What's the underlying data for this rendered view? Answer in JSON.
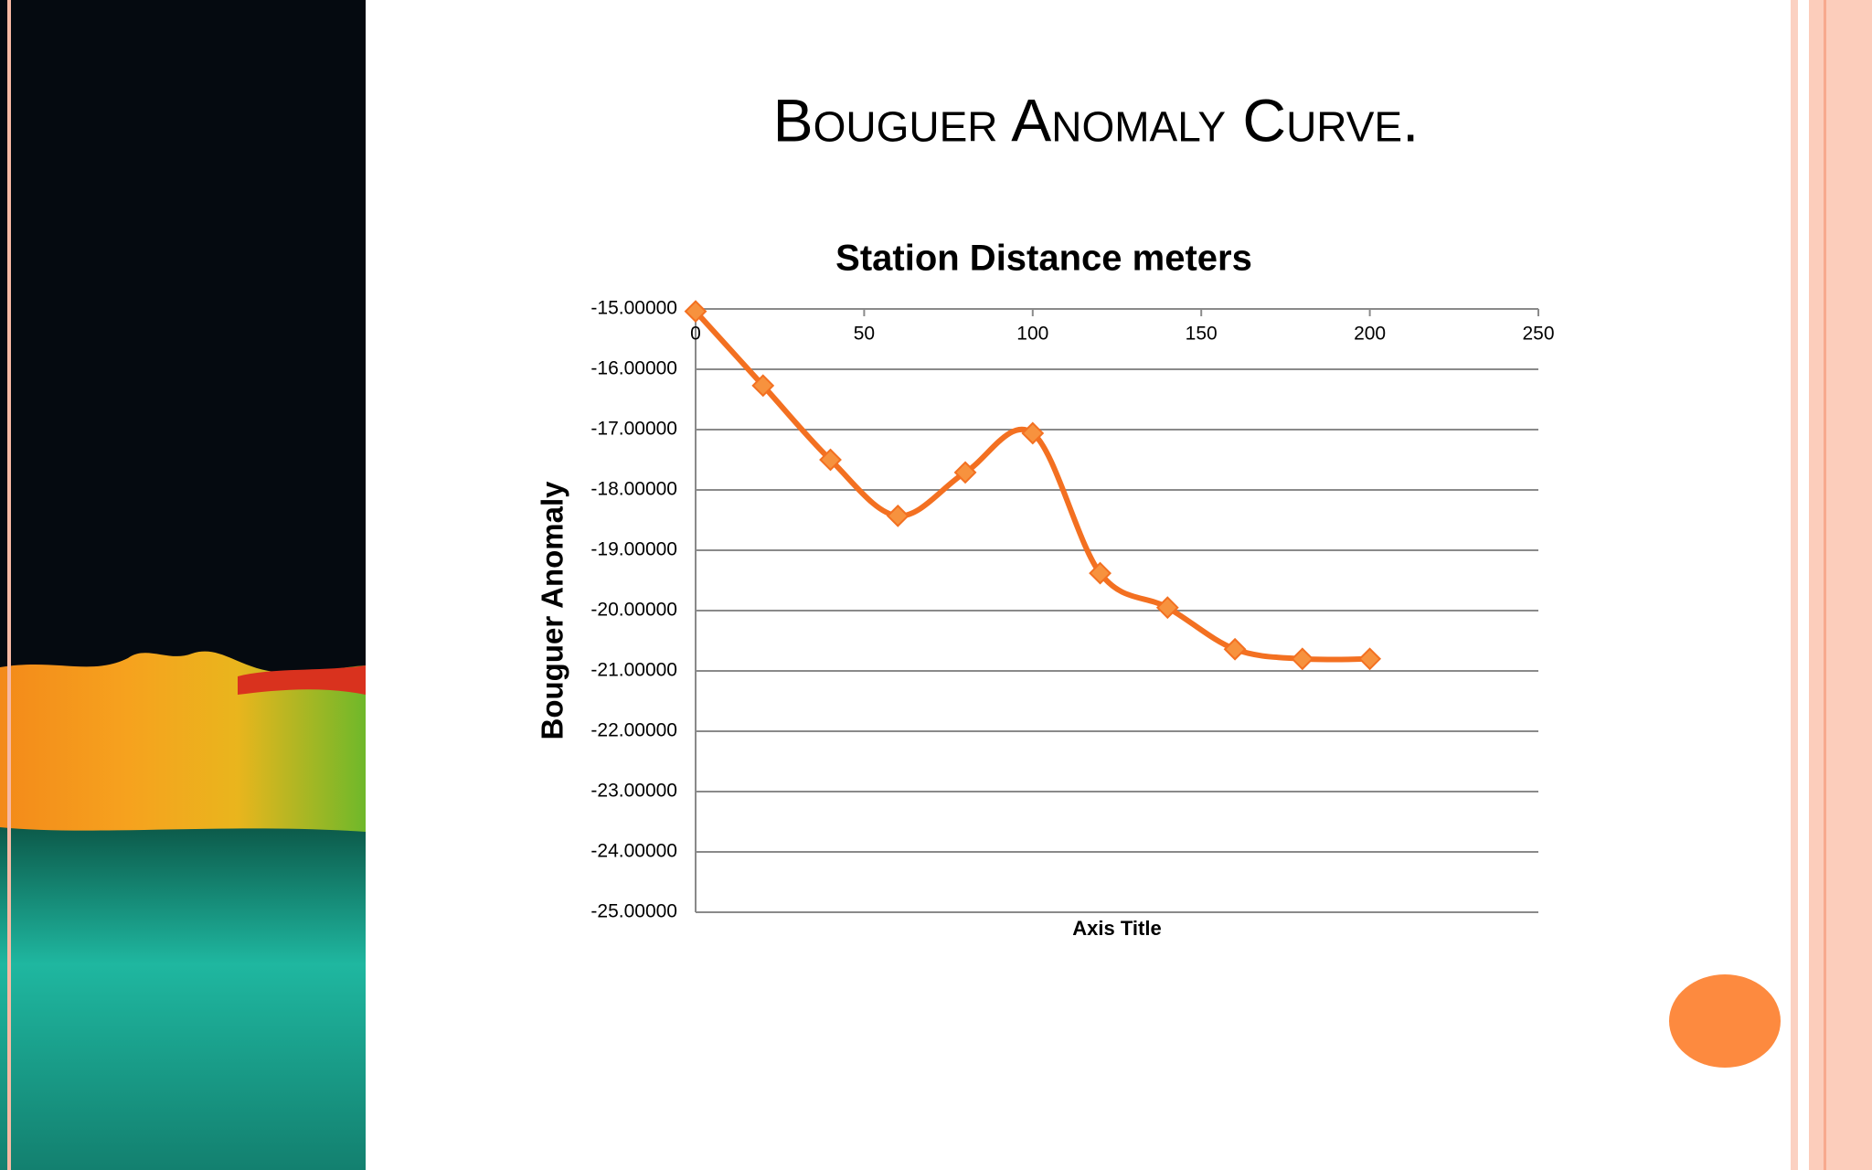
{
  "slide_title": "Bouguer Anomaly Curve.",
  "chart_data": {
    "type": "line",
    "title": "Station Distance meters",
    "x_label": "Axis Title",
    "y_label": "Bouguer Anomaly",
    "x": [
      0,
      20,
      40,
      60,
      80,
      100,
      120,
      140,
      160,
      180,
      200
    ],
    "values": [
      -15.04,
      -16.27,
      -17.5,
      -18.43,
      -17.71,
      -17.06,
      -19.38,
      -19.95,
      -20.64,
      -20.8,
      -20.8
    ],
    "color": "#f37021",
    "smooth": true,
    "xlim": [
      0,
      250
    ],
    "xticks": [
      0,
      50,
      100,
      150,
      200,
      250
    ],
    "ylim": [
      -25,
      -15
    ],
    "yticks": [
      {
        "value": -15,
        "label": "-15.00000"
      },
      {
        "value": -16,
        "label": "-16.00000"
      },
      {
        "value": -17,
        "label": "-17.00000"
      },
      {
        "value": -18,
        "label": "-18.00000"
      },
      {
        "value": -19,
        "label": "-19.00000"
      },
      {
        "value": -20,
        "label": "-20.00000"
      },
      {
        "value": -21,
        "label": "-21.00000"
      },
      {
        "value": -22,
        "label": "-22.00000"
      },
      {
        "value": -23,
        "label": "-23.00000"
      },
      {
        "value": -24,
        "label": "-24.00000"
      },
      {
        "value": -25,
        "label": "-25.00000"
      }
    ],
    "grid": true
  }
}
